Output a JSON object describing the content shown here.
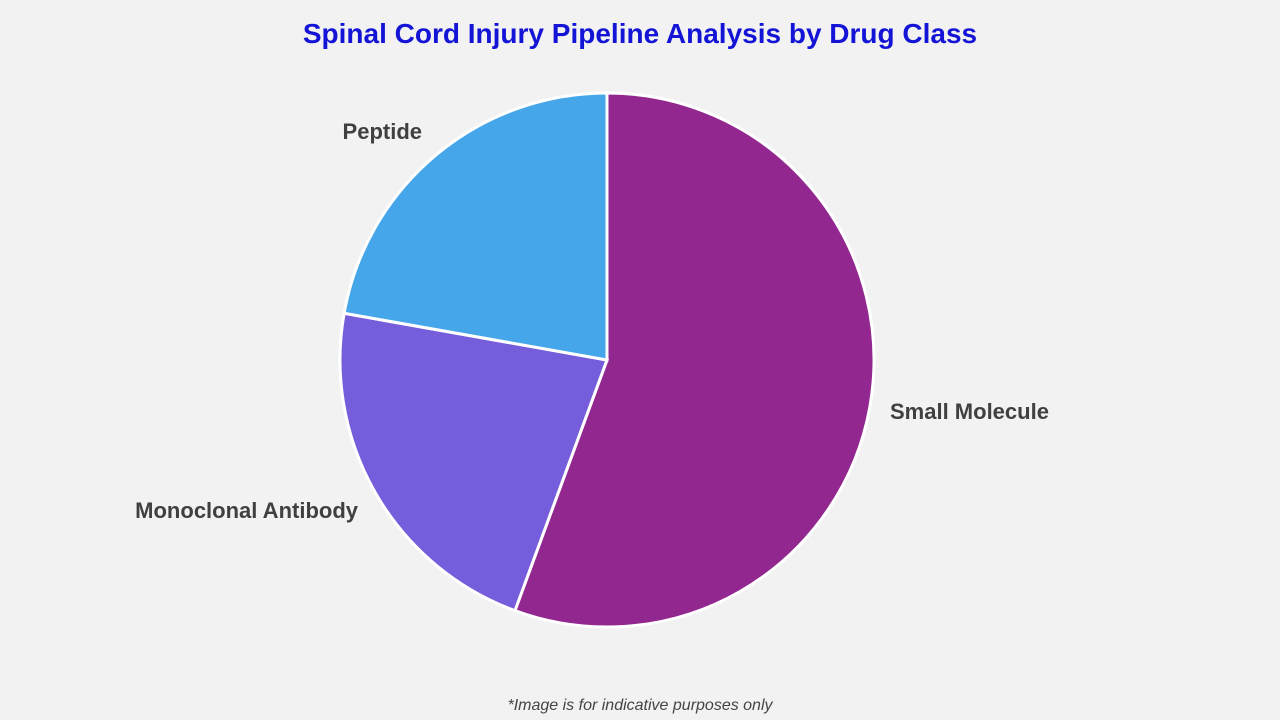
{
  "chart_data": {
    "type": "pie",
    "title": "Spinal Cord Injury Pipeline Analysis by Drug Class",
    "categories": [
      "Small Molecule",
      "Monoclonal Antibody",
      "Peptide"
    ],
    "values": [
      55.6,
      22.2,
      22.2
    ],
    "colors": [
      "#92278f",
      "#765ddb",
      "#45a6ea"
    ],
    "start_angle": "top, clockwise",
    "legend": "none (slice labels outside)"
  },
  "footnote": "*Image is for indicative purposes only"
}
